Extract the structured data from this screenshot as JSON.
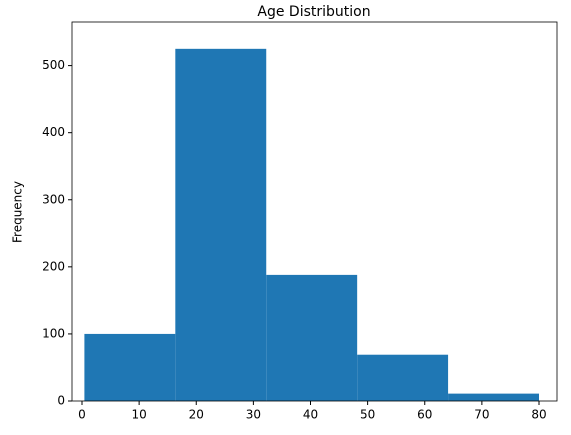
{
  "chart_data": {
    "type": "histogram",
    "title": "Age Distribution",
    "y_label": "Frequency",
    "bins": [
      0.42,
      16.336,
      32.252,
      48.168,
      64.084,
      80
    ],
    "values": [
      100,
      525,
      188,
      69,
      11
    ],
    "color": "#1f77b4",
    "xlim": [
      -1.75,
      83.15
    ],
    "xticks": [
      0,
      10,
      20,
      30,
      40,
      50,
      60,
      70,
      80
    ],
    "ylim": [
      0,
      565
    ],
    "yticks": [
      0,
      100,
      200,
      300,
      400,
      500
    ],
    "grid": false
  }
}
